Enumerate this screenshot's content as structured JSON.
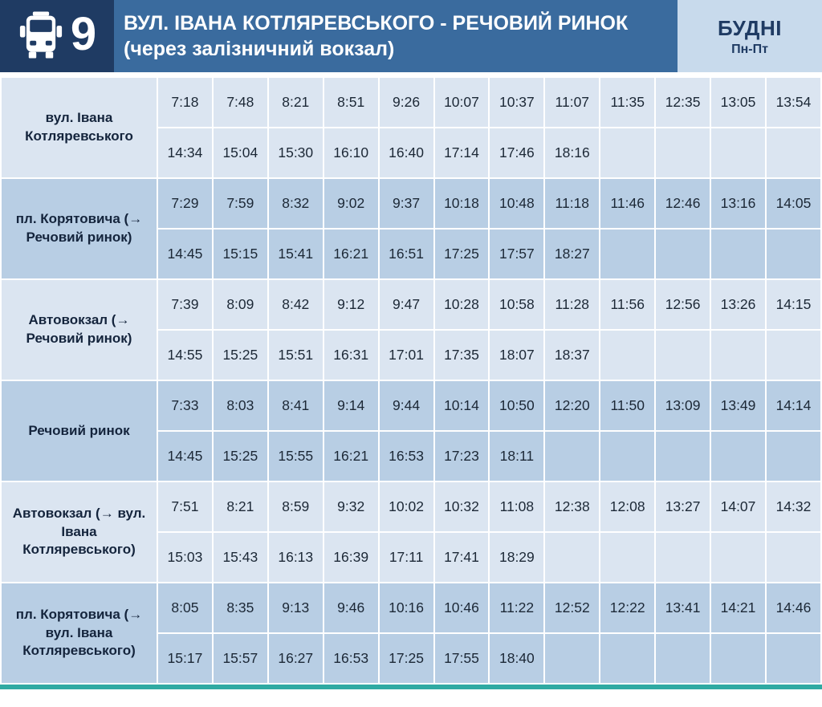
{
  "header": {
    "route_number": "9",
    "title_line1": "ВУЛ. ІВАНА КОТЛЯРЕВСЬКОГО - РЕЧОВИЙ РИНОК",
    "title_line2": "(через залізничний вокзал)",
    "schedule_type": "БУДНІ",
    "schedule_days": "Пн-Пт"
  },
  "icons": {
    "bus_icon": "bus-front-view"
  },
  "colors": {
    "dark_navy": "#1F3B63",
    "header_blue": "#3A6B9E",
    "badge_bg": "#C8DAEC",
    "row_light": "#DBE5F1",
    "row_dark": "#B8CEE4",
    "gridline": "#FFFFFF",
    "bottom_bar_teal": "#2FAAA2",
    "time_text": "#1C2836"
  },
  "timetable": {
    "columns": 12,
    "stops": [
      {
        "name": "вул. Івана Котляревського",
        "times_row1": [
          "7:18",
          "7:48",
          "8:21",
          "8:51",
          "9:26",
          "10:07",
          "10:37",
          "11:07",
          "11:35",
          "12:35",
          "13:05",
          "13:54"
        ],
        "times_row2": [
          "14:34",
          "15:04",
          "15:30",
          "16:10",
          "16:40",
          "17:14",
          "17:46",
          "18:16"
        ]
      },
      {
        "name": "пл. Корятовича (→ Речовий ринок)",
        "times_row1": [
          "7:29",
          "7:59",
          "8:32",
          "9:02",
          "9:37",
          "10:18",
          "10:48",
          "11:18",
          "11:46",
          "12:46",
          "13:16",
          "14:05"
        ],
        "times_row2": [
          "14:45",
          "15:15",
          "15:41",
          "16:21",
          "16:51",
          "17:25",
          "17:57",
          "18:27"
        ]
      },
      {
        "name": "Автовокзал (→ Речовий ринок)",
        "times_row1": [
          "7:39",
          "8:09",
          "8:42",
          "9:12",
          "9:47",
          "10:28",
          "10:58",
          "11:28",
          "11:56",
          "12:56",
          "13:26",
          "14:15"
        ],
        "times_row2": [
          "14:55",
          "15:25",
          "15:51",
          "16:31",
          "17:01",
          "17:35",
          "18:07",
          "18:37"
        ]
      },
      {
        "name": "Речовий ринок",
        "times_row1": [
          "7:33",
          "8:03",
          "8:41",
          "9:14",
          "9:44",
          "10:14",
          "10:50",
          "12:20",
          "11:50",
          "13:09",
          "13:49",
          "14:14"
        ],
        "times_row2": [
          "14:45",
          "15:25",
          "15:55",
          "16:21",
          "16:53",
          "17:23",
          "18:11"
        ]
      },
      {
        "name": "Автовокзал (→ вул. Івана Котляревського)",
        "times_row1": [
          "7:51",
          "8:21",
          "8:59",
          "9:32",
          "10:02",
          "10:32",
          "11:08",
          "12:38",
          "12:08",
          "13:27",
          "14:07",
          "14:32"
        ],
        "times_row2": [
          "15:03",
          "15:43",
          "16:13",
          "16:39",
          "17:11",
          "17:41",
          "18:29"
        ]
      },
      {
        "name": "пл. Корятовича (→ вул. Івана Котляревського)",
        "times_row1": [
          "8:05",
          "8:35",
          "9:13",
          "9:46",
          "10:16",
          "10:46",
          "11:22",
          "12:52",
          "12:22",
          "13:41",
          "14:21",
          "14:46"
        ],
        "times_row2": [
          "15:17",
          "15:57",
          "16:27",
          "16:53",
          "17:25",
          "17:55",
          "18:40"
        ]
      }
    ]
  }
}
